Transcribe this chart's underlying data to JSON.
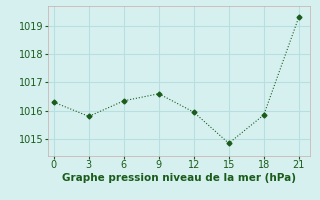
{
  "x": [
    0,
    3,
    6,
    9,
    12,
    15,
    18,
    21
  ],
  "y": [
    1016.3,
    1015.8,
    1016.35,
    1016.6,
    1015.95,
    1014.85,
    1015.85,
    1019.3
  ],
  "line_color": "#1a5c1a",
  "marker": "D",
  "marker_size": 2.5,
  "xlabel": "Graphe pression niveau de la mer (hPa)",
  "xlim": [
    -0.5,
    22
  ],
  "ylim": [
    1014.4,
    1019.7
  ],
  "yticks": [
    1015,
    1016,
    1017,
    1018,
    1019
  ],
  "xticks": [
    0,
    3,
    6,
    9,
    12,
    15,
    18,
    21
  ],
  "bg_color": "#d6f0f0",
  "grid_color": "#b8dede",
  "xlabel_fontsize": 7.5,
  "tick_fontsize": 7.0
}
